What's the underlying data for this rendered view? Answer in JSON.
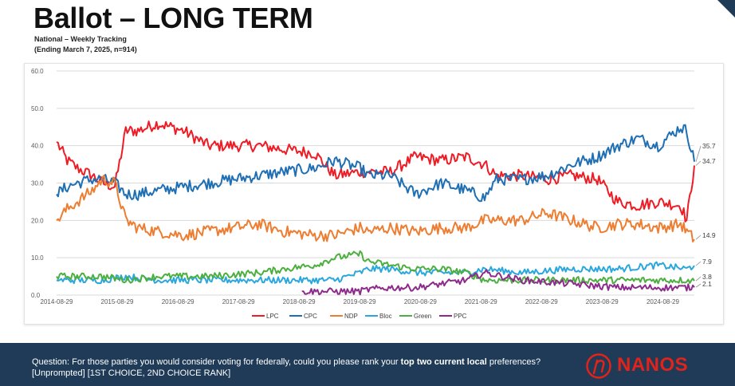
{
  "title": "Ballot – LONG TERM",
  "subtitle_line1": "National – Weekly Tracking",
  "subtitle_line2": "(Ending March 7, 2025, n=914)",
  "question": {
    "prefix": "Question: For those parties you would consider voting for federally, could you please rank your ",
    "bold": "top two current local",
    "suffix": " preferences? [Unprompted] [1ST CHOICE, 2ND CHOICE RANK]"
  },
  "logo_text": "NANOS",
  "colors": {
    "footer_bg": "#1f3b57",
    "logo_red": "#e2231a",
    "LPC": "#ee1c25",
    "CPC": "#1f6fb4",
    "NDP": "#ed7d31",
    "Bloc": "#2aa7de",
    "Green": "#4caf3f",
    "PPC": "#8e2a8c"
  },
  "chart_data": {
    "type": "line",
    "title": "",
    "xlabel": "",
    "ylabel": "",
    "ylim": [
      0,
      60
    ],
    "y_ticks": [
      "0.0",
      "10.0",
      "20.0",
      "30.0",
      "40.0",
      "50.0",
      "60.0"
    ],
    "x_ticks": [
      "2014-08-29",
      "2015-08-29",
      "2016-08-29",
      "2017-08-29",
      "2018-08-29",
      "2019-08-29",
      "2020-08-29",
      "2021-08-29",
      "2022-08-29",
      "2023-08-29",
      "2024-08-29"
    ],
    "x_range": [
      "2014-08-29",
      "2025-03-07"
    ],
    "grid": true,
    "legend_position": "bottom",
    "end_labels": [
      "35.7",
      "34.7",
      "14.9",
      "7.9",
      "3.8",
      "2.1"
    ],
    "series": [
      {
        "name": "LPC",
        "color": "#ee1c25",
        "x": [
          "2014-08-29",
          "2014-11-01",
          "2015-01-01",
          "2015-04-01",
          "2015-06-01",
          "2015-08-15",
          "2015-10-20",
          "2016-01-01",
          "2016-05-01",
          "2016-10-01",
          "2017-03-01",
          "2017-08-01",
          "2018-01-01",
          "2018-06-01",
          "2018-12-01",
          "2019-04-01",
          "2019-09-01",
          "2019-10-21",
          "2020-03-01",
          "2020-08-01",
          "2021-01-01",
          "2021-06-01",
          "2021-09-20",
          "2021-12-01",
          "2022-05-01",
          "2022-10-01",
          "2023-03-01",
          "2023-08-01",
          "2023-12-01",
          "2024-04-01",
          "2024-08-01",
          "2024-12-15",
          "2025-01-20",
          "2025-03-07"
        ],
        "y": [
          41,
          36,
          34,
          32,
          30,
          29,
          44,
          44,
          46,
          44,
          40,
          40,
          40,
          39,
          38,
          32,
          33,
          33,
          33,
          37,
          36,
          37,
          35,
          32,
          32,
          31,
          32,
          31,
          25,
          24,
          25,
          24,
          20,
          34.7
        ]
      },
      {
        "name": "CPC",
        "color": "#1f6fb4",
        "x": [
          "2014-08-29",
          "2014-11-01",
          "2015-01-01",
          "2015-04-01",
          "2015-06-01",
          "2015-08-15",
          "2015-10-20",
          "2016-01-01",
          "2016-05-01",
          "2016-10-01",
          "2017-03-01",
          "2017-08-01",
          "2018-01-01",
          "2018-06-01",
          "2018-12-01",
          "2019-04-01",
          "2019-09-01",
          "2019-10-21",
          "2020-03-01",
          "2020-08-01",
          "2021-01-01",
          "2021-06-01",
          "2021-09-20",
          "2021-12-01",
          "2022-05-01",
          "2022-10-01",
          "2023-03-01",
          "2023-08-01",
          "2023-12-01",
          "2024-04-01",
          "2024-08-01",
          "2024-12-15",
          "2025-01-20",
          "2025-03-07"
        ],
        "y": [
          27,
          29,
          30,
          31,
          31,
          30,
          27,
          27,
          28,
          29,
          30,
          31,
          32,
          33,
          34,
          36,
          34,
          32,
          32,
          27,
          30,
          28,
          26,
          31,
          31,
          32,
          35,
          37,
          40,
          42,
          40,
          45,
          44,
          35.7
        ]
      },
      {
        "name": "NDP",
        "color": "#ed7d31",
        "x": [
          "2014-08-29",
          "2014-11-01",
          "2015-01-01",
          "2015-04-01",
          "2015-06-01",
          "2015-08-15",
          "2015-10-20",
          "2016-01-01",
          "2016-05-01",
          "2016-10-01",
          "2017-03-01",
          "2017-08-01",
          "2018-01-01",
          "2018-06-01",
          "2018-12-01",
          "2019-04-01",
          "2019-09-01",
          "2019-10-21",
          "2020-03-01",
          "2020-08-01",
          "2021-01-01",
          "2021-06-01",
          "2021-09-20",
          "2021-12-01",
          "2022-05-01",
          "2022-10-01",
          "2023-03-01",
          "2023-08-01",
          "2023-12-01",
          "2024-04-01",
          "2024-08-01",
          "2024-12-15",
          "2025-01-20",
          "2025-03-07"
        ],
        "y": [
          20,
          23,
          25,
          28,
          31,
          30,
          20,
          18,
          17,
          16,
          17,
          18,
          19,
          17,
          16,
          16,
          18,
          17,
          18,
          17,
          18,
          18,
          20,
          20,
          20,
          22,
          20,
          18,
          19,
          19,
          18,
          19,
          17,
          14.9
        ]
      },
      {
        "name": "Bloc",
        "color": "#2aa7de",
        "x": [
          "2014-08-29",
          "2015-06-01",
          "2015-10-20",
          "2016-05-01",
          "2017-03-01",
          "2018-01-01",
          "2018-12-01",
          "2019-04-01",
          "2019-09-01",
          "2019-10-21",
          "2020-03-01",
          "2020-08-01",
          "2021-06-01",
          "2021-09-20",
          "2022-05-01",
          "2023-03-01",
          "2023-12-01",
          "2024-08-01",
          "2025-01-20",
          "2025-03-07"
        ],
        "y": [
          4,
          4,
          5,
          4,
          4,
          4,
          4,
          4,
          6,
          7,
          7,
          6,
          6,
          7,
          6,
          7,
          7,
          8,
          7,
          7.9
        ]
      },
      {
        "name": "Green",
        "color": "#4caf3f",
        "x": [
          "2014-08-29",
          "2015-06-01",
          "2015-10-20",
          "2016-05-01",
          "2017-03-01",
          "2018-01-01",
          "2018-06-01",
          "2018-12-01",
          "2019-04-01",
          "2019-09-01",
          "2019-10-21",
          "2020-03-01",
          "2020-08-01",
          "2021-01-01",
          "2021-06-01",
          "2021-09-20",
          "2022-05-01",
          "2023-03-01",
          "2023-12-01",
          "2024-08-01",
          "2025-01-20",
          "2025-03-07"
        ],
        "y": [
          5,
          5,
          4,
          5,
          5,
          6,
          7,
          8,
          10,
          11,
          9,
          8,
          7,
          7,
          6,
          4,
          4,
          4,
          4,
          4,
          4,
          3.8
        ]
      },
      {
        "name": "PPC",
        "color": "#8e2a8c",
        "x": [
          "2018-09-15",
          "2019-04-01",
          "2019-09-01",
          "2019-10-21",
          "2020-03-01",
          "2020-08-01",
          "2021-01-01",
          "2021-06-01",
          "2021-09-20",
          "2022-05-01",
          "2023-03-01",
          "2023-12-01",
          "2024-08-01",
          "2025-01-20",
          "2025-03-07"
        ],
        "y": [
          1,
          1,
          1,
          1.5,
          2,
          2,
          3,
          4,
          6,
          4,
          3,
          2,
          2,
          2,
          2.1
        ]
      }
    ]
  }
}
